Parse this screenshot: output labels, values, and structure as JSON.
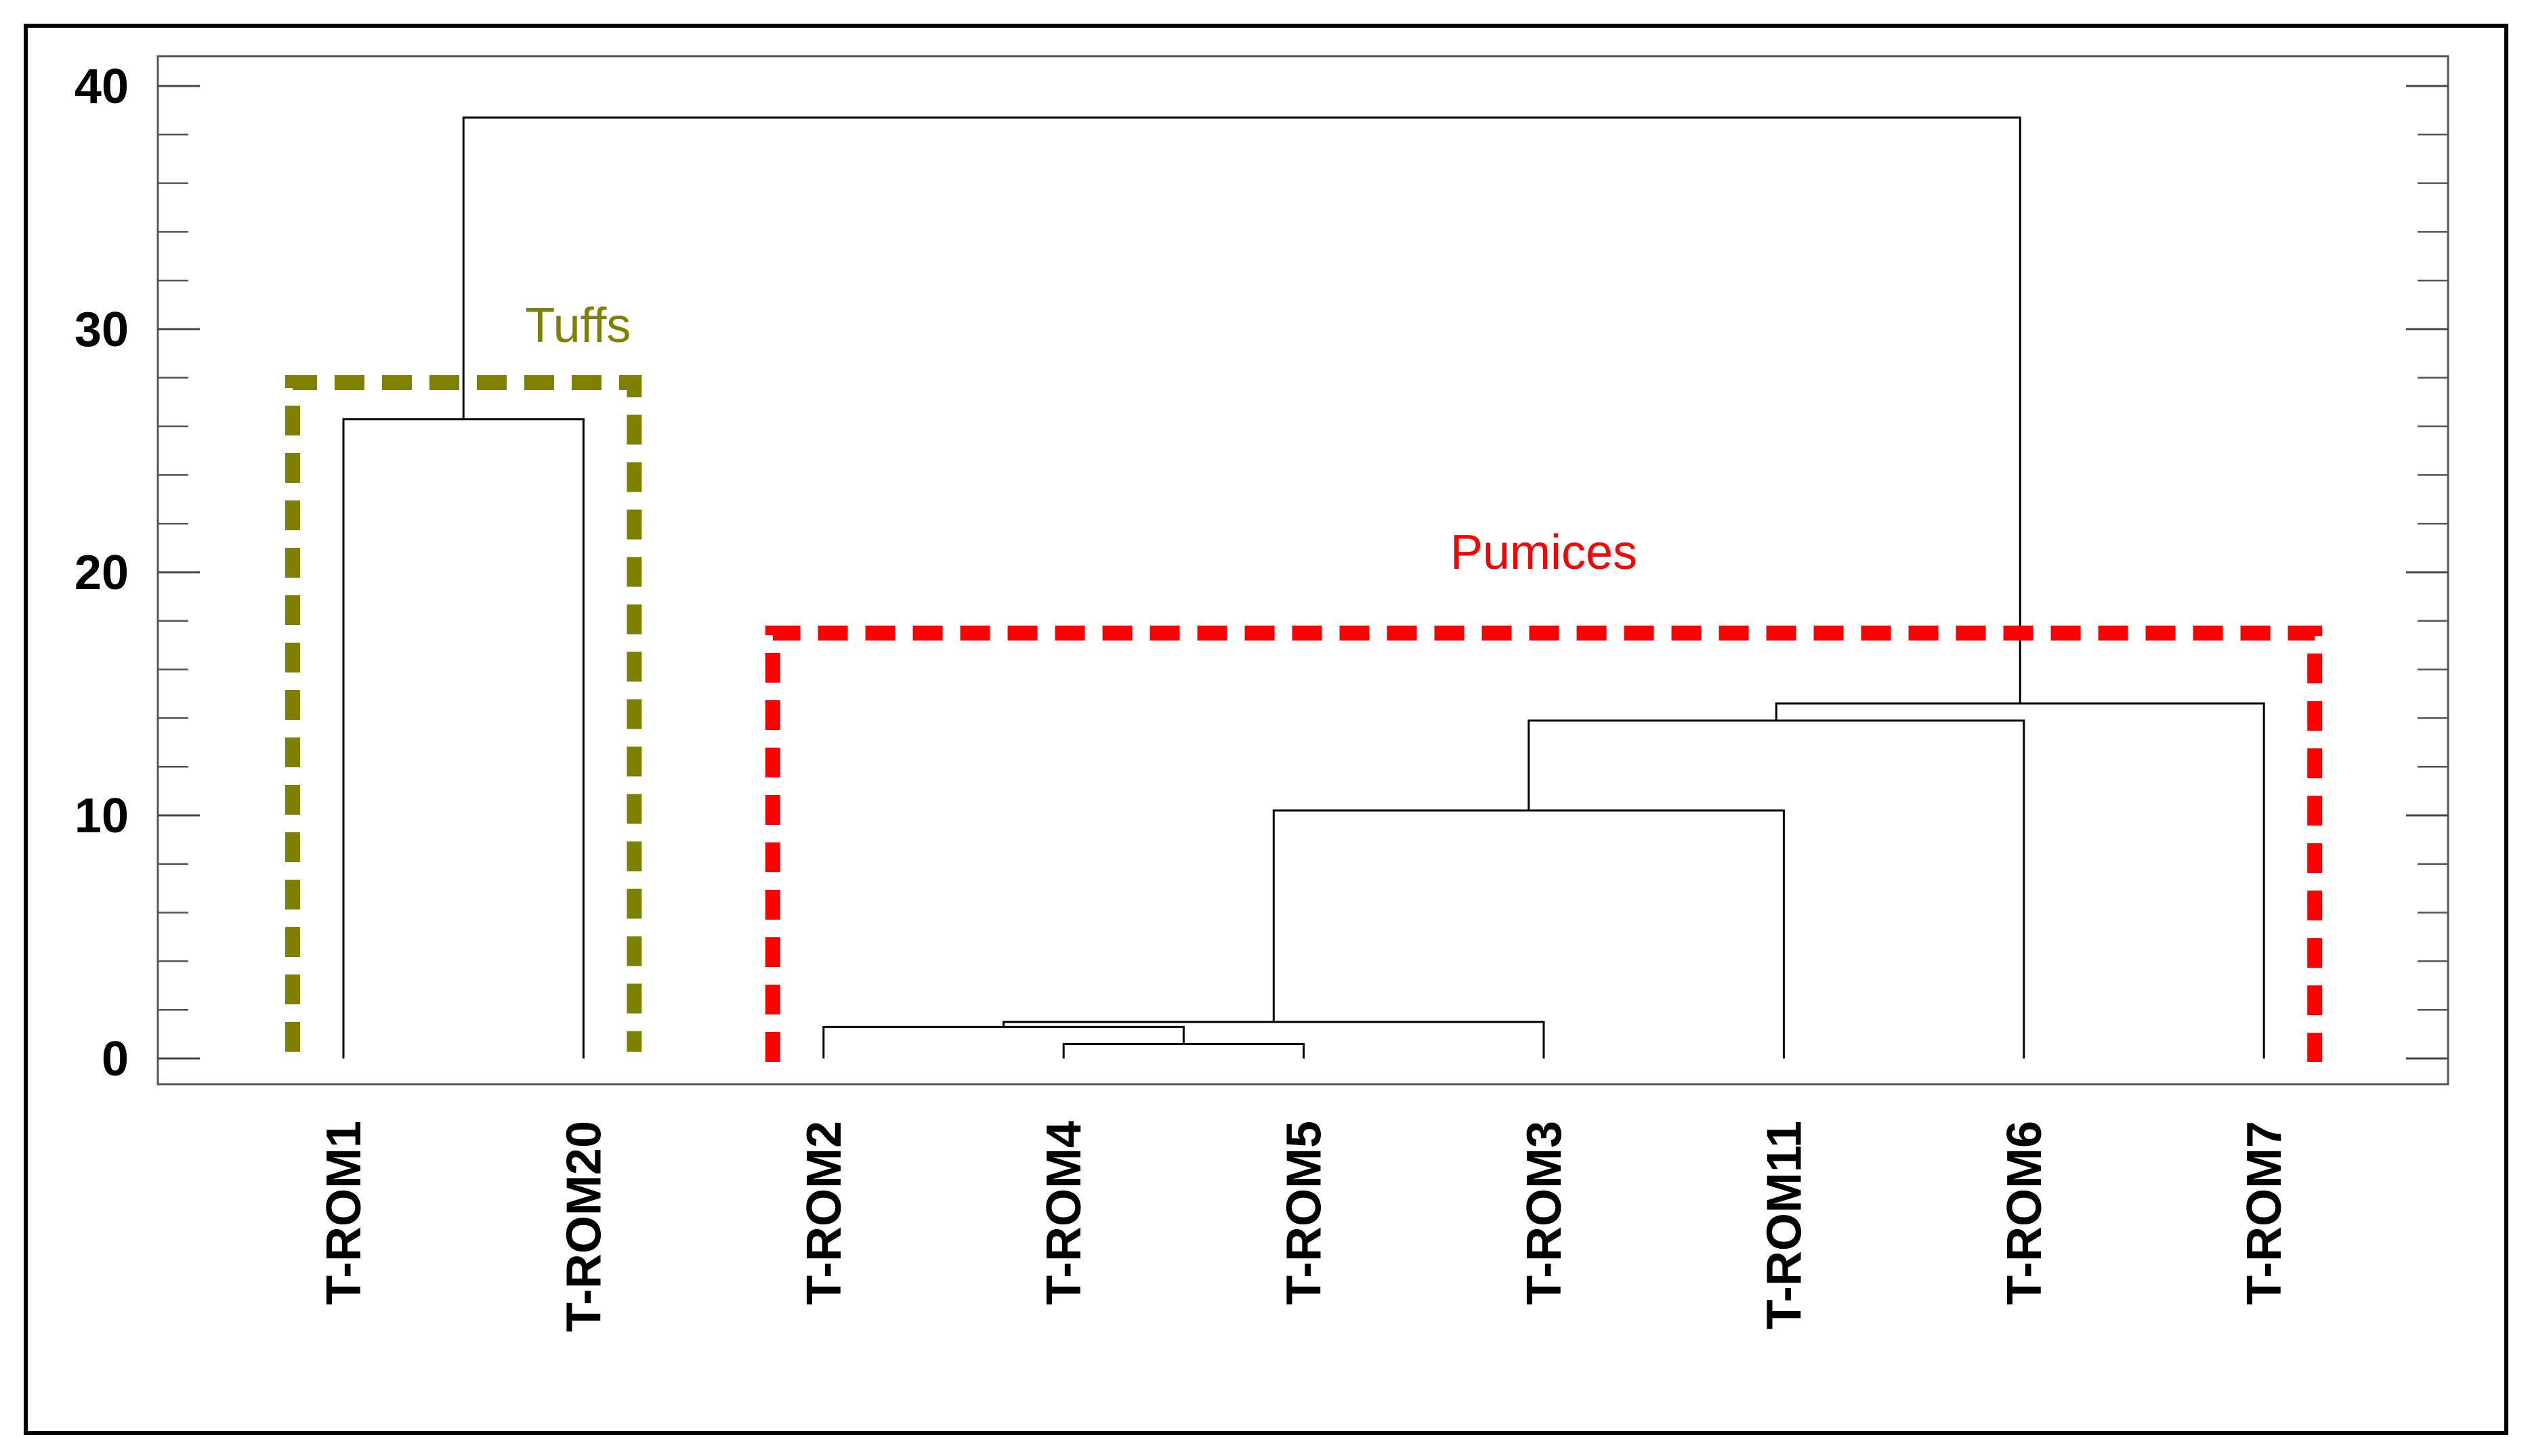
{
  "chart_data": {
    "type": "dendrogram",
    "ylim": [
      0,
      42.5
    ],
    "y_ticks": [
      0,
      10,
      20,
      30,
      40
    ],
    "leaves": [
      "T-ROM1",
      "T-ROM20",
      "T-ROM2",
      "T-ROM4",
      "T-ROM5",
      "T-ROM3",
      "T-ROM11",
      "T-ROM6",
      "T-ROM7"
    ],
    "merges": [
      {
        "left": "T-ROM1",
        "right": "T-ROM20",
        "height": 26.3
      },
      {
        "left": "T-ROM4",
        "right": "T-ROM5",
        "height": 0.6
      },
      {
        "left": "T-ROM2",
        "right": [
          "T-ROM4",
          "T-ROM5"
        ],
        "height": 1.3
      },
      {
        "left": [
          [
            "T-ROM2"
          ],
          [
            "T-ROM4",
            "T-ROM5"
          ]
        ],
        "right": "T-ROM3",
        "height": 1.5
      },
      {
        "left": "cluster-2-4-5-3",
        "right": "T-ROM11",
        "height": 10.2
      },
      {
        "left": "cluster-2-4-5-3-11",
        "right": "T-ROM6",
        "height": 13.9
      },
      {
        "left": "cluster-2-4-5-3-11-6",
        "right": "T-ROM7",
        "height": 14.6
      },
      {
        "left": "cluster-tuffs",
        "right": "cluster-pumices",
        "height": 38.7
      }
    ],
    "groups": [
      {
        "label": "Tuffs",
        "color": "#808000",
        "leaves": [
          "T-ROM1",
          "T-ROM20"
        ],
        "top": 27.8
      },
      {
        "label": "Pumices",
        "color": "#ff0000",
        "leaves": [
          "T-ROM2",
          "T-ROM4",
          "T-ROM5",
          "T-ROM3",
          "T-ROM11",
          "T-ROM6",
          "T-ROM7"
        ],
        "top": 17.5
      }
    ]
  }
}
